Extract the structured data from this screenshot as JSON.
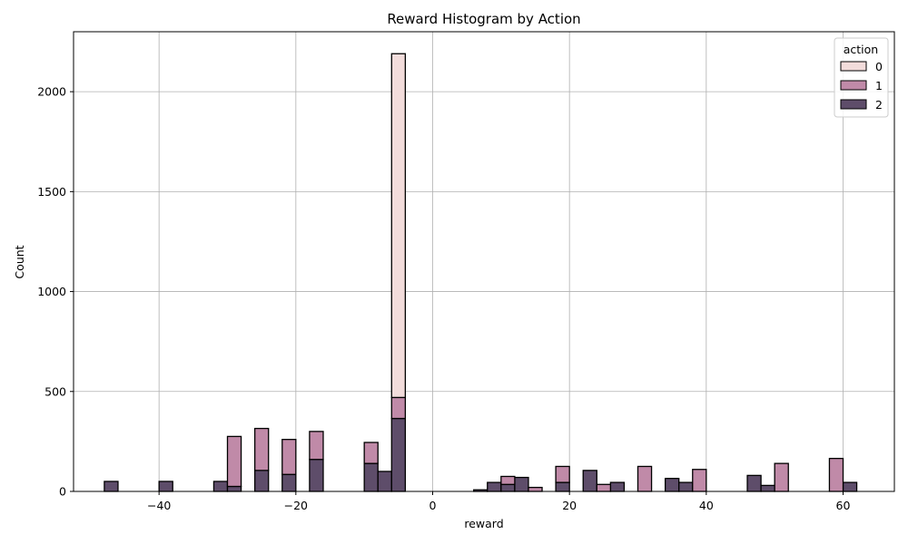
{
  "chart_data": {
    "type": "bar",
    "stacked": true,
    "title": "Reward Histogram by Action",
    "xlabel": "reward",
    "ylabel": "Count",
    "xlim": [
      -52.5,
      67.5
    ],
    "ylim": [
      0,
      2300
    ],
    "xticks": [
      -40,
      -20,
      0,
      20,
      40,
      60
    ],
    "yticks": [
      0,
      500,
      1000,
      1500,
      2000
    ],
    "grid": true,
    "bin_width": 2,
    "legend": {
      "title": "action",
      "position": "top-right"
    },
    "series": [
      {
        "name": "0",
        "color": "#f2dcdb",
        "bins": [
          {
            "x": -5,
            "value": 1720
          }
        ]
      },
      {
        "name": "1",
        "color": "#c08aa8",
        "bins": [
          {
            "x": -29,
            "value": 250
          },
          {
            "x": -25,
            "value": 210
          },
          {
            "x": -21,
            "value": 175
          },
          {
            "x": -17,
            "value": 140
          },
          {
            "x": -9,
            "value": 105
          },
          {
            "x": -5,
            "value": 105
          },
          {
            "x": 11,
            "value": 40
          },
          {
            "x": 15,
            "value": 20
          },
          {
            "x": 19,
            "value": 80
          },
          {
            "x": 25,
            "value": 35
          },
          {
            "x": 31,
            "value": 125
          },
          {
            "x": 39,
            "value": 110
          },
          {
            "x": 51,
            "value": 140
          },
          {
            "x": 59,
            "value": 165
          }
        ]
      },
      {
        "name": "2",
        "color": "#5e4d6a",
        "bins": [
          {
            "x": -47,
            "value": 50
          },
          {
            "x": -39,
            "value": 50
          },
          {
            "x": -31,
            "value": 50
          },
          {
            "x": -29,
            "value": 25
          },
          {
            "x": -25,
            "value": 105
          },
          {
            "x": -21,
            "value": 85
          },
          {
            "x": -17,
            "value": 160
          },
          {
            "x": -9,
            "value": 140
          },
          {
            "x": -7,
            "value": 100
          },
          {
            "x": -5,
            "value": 365
          },
          {
            "x": 7,
            "value": 8
          },
          {
            "x": 9,
            "value": 45
          },
          {
            "x": 11,
            "value": 35
          },
          {
            "x": 13,
            "value": 70
          },
          {
            "x": 19,
            "value": 45
          },
          {
            "x": 23,
            "value": 105
          },
          {
            "x": 27,
            "value": 45
          },
          {
            "x": 35,
            "value": 65
          },
          {
            "x": 37,
            "value": 45
          },
          {
            "x": 47,
            "value": 80
          },
          {
            "x": 49,
            "value": 30
          },
          {
            "x": 61,
            "value": 45
          }
        ]
      }
    ]
  }
}
